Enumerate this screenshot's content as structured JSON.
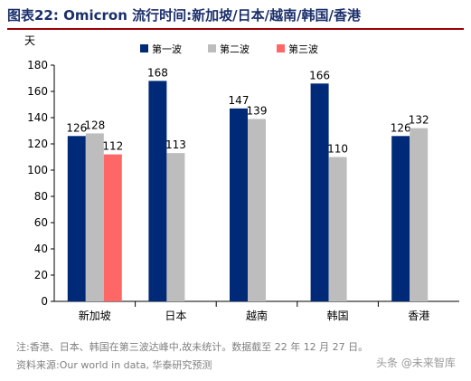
{
  "title": "图表22:  Omicron 流行时间:新加坡/日本/越南/韩国/香港",
  "notes": {
    "note": "注:香港、日本、韩国在第三波达峰中,故未统计。数据截至 22 年 12 月 27 日。",
    "source": "资料来源:Our world in data, 华泰研究预测"
  },
  "watermark": "头条 @未来智库",
  "colors": {
    "title": "#1b2f6b",
    "rule": "#9c0006"
  },
  "chart_data": {
    "type": "bar",
    "ylabel": "天",
    "ylim": [
      0,
      180
    ],
    "yticks": [
      0,
      20,
      40,
      60,
      80,
      100,
      120,
      140,
      160,
      180
    ],
    "grid": false,
    "legend_position": "top-center",
    "categories": [
      "新加坡",
      "日本",
      "越南",
      "韩国",
      "香港"
    ],
    "series": [
      {
        "name": "第一波",
        "color": "#002a78",
        "values": [
          126,
          168,
          147,
          166,
          126
        ]
      },
      {
        "name": "第二波",
        "color": "#bdbdbd",
        "values": [
          128,
          113,
          139,
          110,
          132
        ]
      },
      {
        "name": "第三波",
        "color": "#ff6666",
        "values": [
          112,
          null,
          null,
          null,
          null
        ]
      }
    ]
  }
}
